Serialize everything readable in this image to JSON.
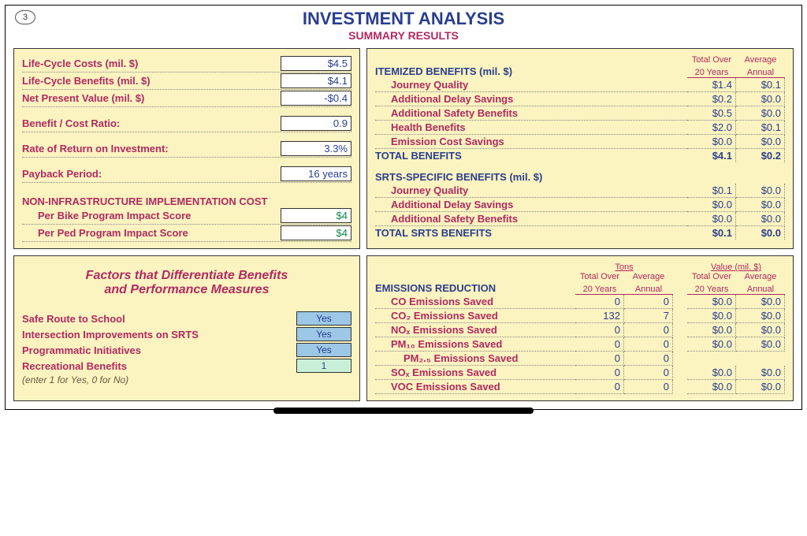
{
  "page_number": "3",
  "title": "INVESTMENT ANALYSIS",
  "subtitle": "SUMMARY RESULTS",
  "colors": {
    "panel_bg": "#fbf3c0",
    "accent_blue": "#2a3e8e",
    "accent_red": "#b02a60",
    "input_blue_bg": "#9cc7e6",
    "input_mint_bg": "#c8f0d8"
  },
  "summary": {
    "life_cycle_costs": {
      "label": "Life-Cycle Costs (mil. $)",
      "value": "$4.5"
    },
    "life_cycle_benefits": {
      "label": "Life-Cycle Benefits (mil. $)",
      "value": "$4.1"
    },
    "net_present_value": {
      "label": "Net Present Value (mil. $)",
      "value": "-$0.4"
    },
    "bcr": {
      "label": "Benefit / Cost Ratio:",
      "value": "0.9"
    },
    "ror": {
      "label": "Rate of Return on Investment:",
      "value": "3.3%"
    },
    "payback": {
      "label": "Payback Period:",
      "value": "16 years"
    },
    "non_infra_header": "NON-INFRASTRUCTURE IMPLEMENTATION COST",
    "per_bike": {
      "label": "Per Bike Program Impact Score",
      "value": "$4"
    },
    "per_ped": {
      "label": "Per Ped Program Impact Score",
      "value": "$4"
    }
  },
  "benefits": {
    "header": "ITEMIZED BENEFITS (mil. $)",
    "col1": "Total Over",
    "col1b": "20 Years",
    "col2": "Average",
    "col2b": "Annual",
    "rows": [
      {
        "label": "Journey Quality",
        "a": "$1.4",
        "b": "$0.1"
      },
      {
        "label": "Additional Delay Savings",
        "a": "$0.2",
        "b": "$0.0"
      },
      {
        "label": "Additional Safety Benefits",
        "a": "$0.5",
        "b": "$0.0"
      },
      {
        "label": "Health Benefits",
        "a": "$2.0",
        "b": "$0.1"
      },
      {
        "label": "Emission Cost Savings",
        "a": "$0.0",
        "b": "$0.0"
      }
    ],
    "total": {
      "label": "TOTAL BENEFITS",
      "a": "$4.1",
      "b": "$0.2"
    },
    "srts_header": "SRTS-SPECIFIC BENEFITS (mil. $)",
    "srts_rows": [
      {
        "label": "Journey Quality",
        "a": "$0.1",
        "b": "$0.0"
      },
      {
        "label": "Additional Delay Savings",
        "a": "$0.0",
        "b": "$0.0"
      },
      {
        "label": "Additional Safety Benefits",
        "a": "$0.0",
        "b": "$0.0"
      }
    ],
    "srts_total": {
      "label": "TOTAL SRTS BENEFITS",
      "a": "$0.1",
      "b": "$0.0"
    }
  },
  "factors": {
    "title1": "Factors that Differentiate Benefits",
    "title2": "and Performance Measures",
    "rows": [
      {
        "label": "Safe Route to School",
        "value": "Yes",
        "style": "blue"
      },
      {
        "label": "Intersection Improvements on SRTS",
        "value": "Yes",
        "style": "blue"
      },
      {
        "label": "Programmatic Initiatives",
        "value": "Yes",
        "style": "blue"
      },
      {
        "label": "Recreational Benefits",
        "value": "1",
        "style": "mint"
      }
    ],
    "hint": "(enter 1 for Yes, 0 for No)"
  },
  "emissions": {
    "header": "EMISSIONS REDUCTION",
    "tons_label": "Tons",
    "value_label": "Value (mil. $)",
    "col1": "Total Over",
    "col1b": "20 Years",
    "col2": "Average",
    "col2b": "Annual",
    "col3": "Total Over",
    "col3b": "20 Years",
    "col4": "Average",
    "col4b": "Annual",
    "rows": [
      {
        "label": "CO Emissions Saved",
        "t1": "0",
        "t2": "0",
        "v1": "$0.0",
        "v2": "$0.0"
      },
      {
        "label": "CO₂ Emissions Saved",
        "t1": "132",
        "t2": "7",
        "v1": "$0.0",
        "v2": "$0.0"
      },
      {
        "label": "NOₓ Emissions Saved",
        "t1": "0",
        "t2": "0",
        "v1": "$0.0",
        "v2": "$0.0"
      },
      {
        "label": "PM₁₀ Emissions Saved",
        "t1": "0",
        "t2": "0",
        "v1": "$0.0",
        "v2": "$0.0"
      },
      {
        "label": "PM₂.₅ Emissions Saved",
        "t1": "0",
        "t2": "0",
        "v1": "",
        "v2": ""
      },
      {
        "label": "SOₓ Emissions Saved",
        "t1": "0",
        "t2": "0",
        "v1": "$0.0",
        "v2": "$0.0"
      },
      {
        "label": "VOC Emissions Saved",
        "t1": "0",
        "t2": "0",
        "v1": "$0.0",
        "v2": "$0.0"
      }
    ]
  }
}
